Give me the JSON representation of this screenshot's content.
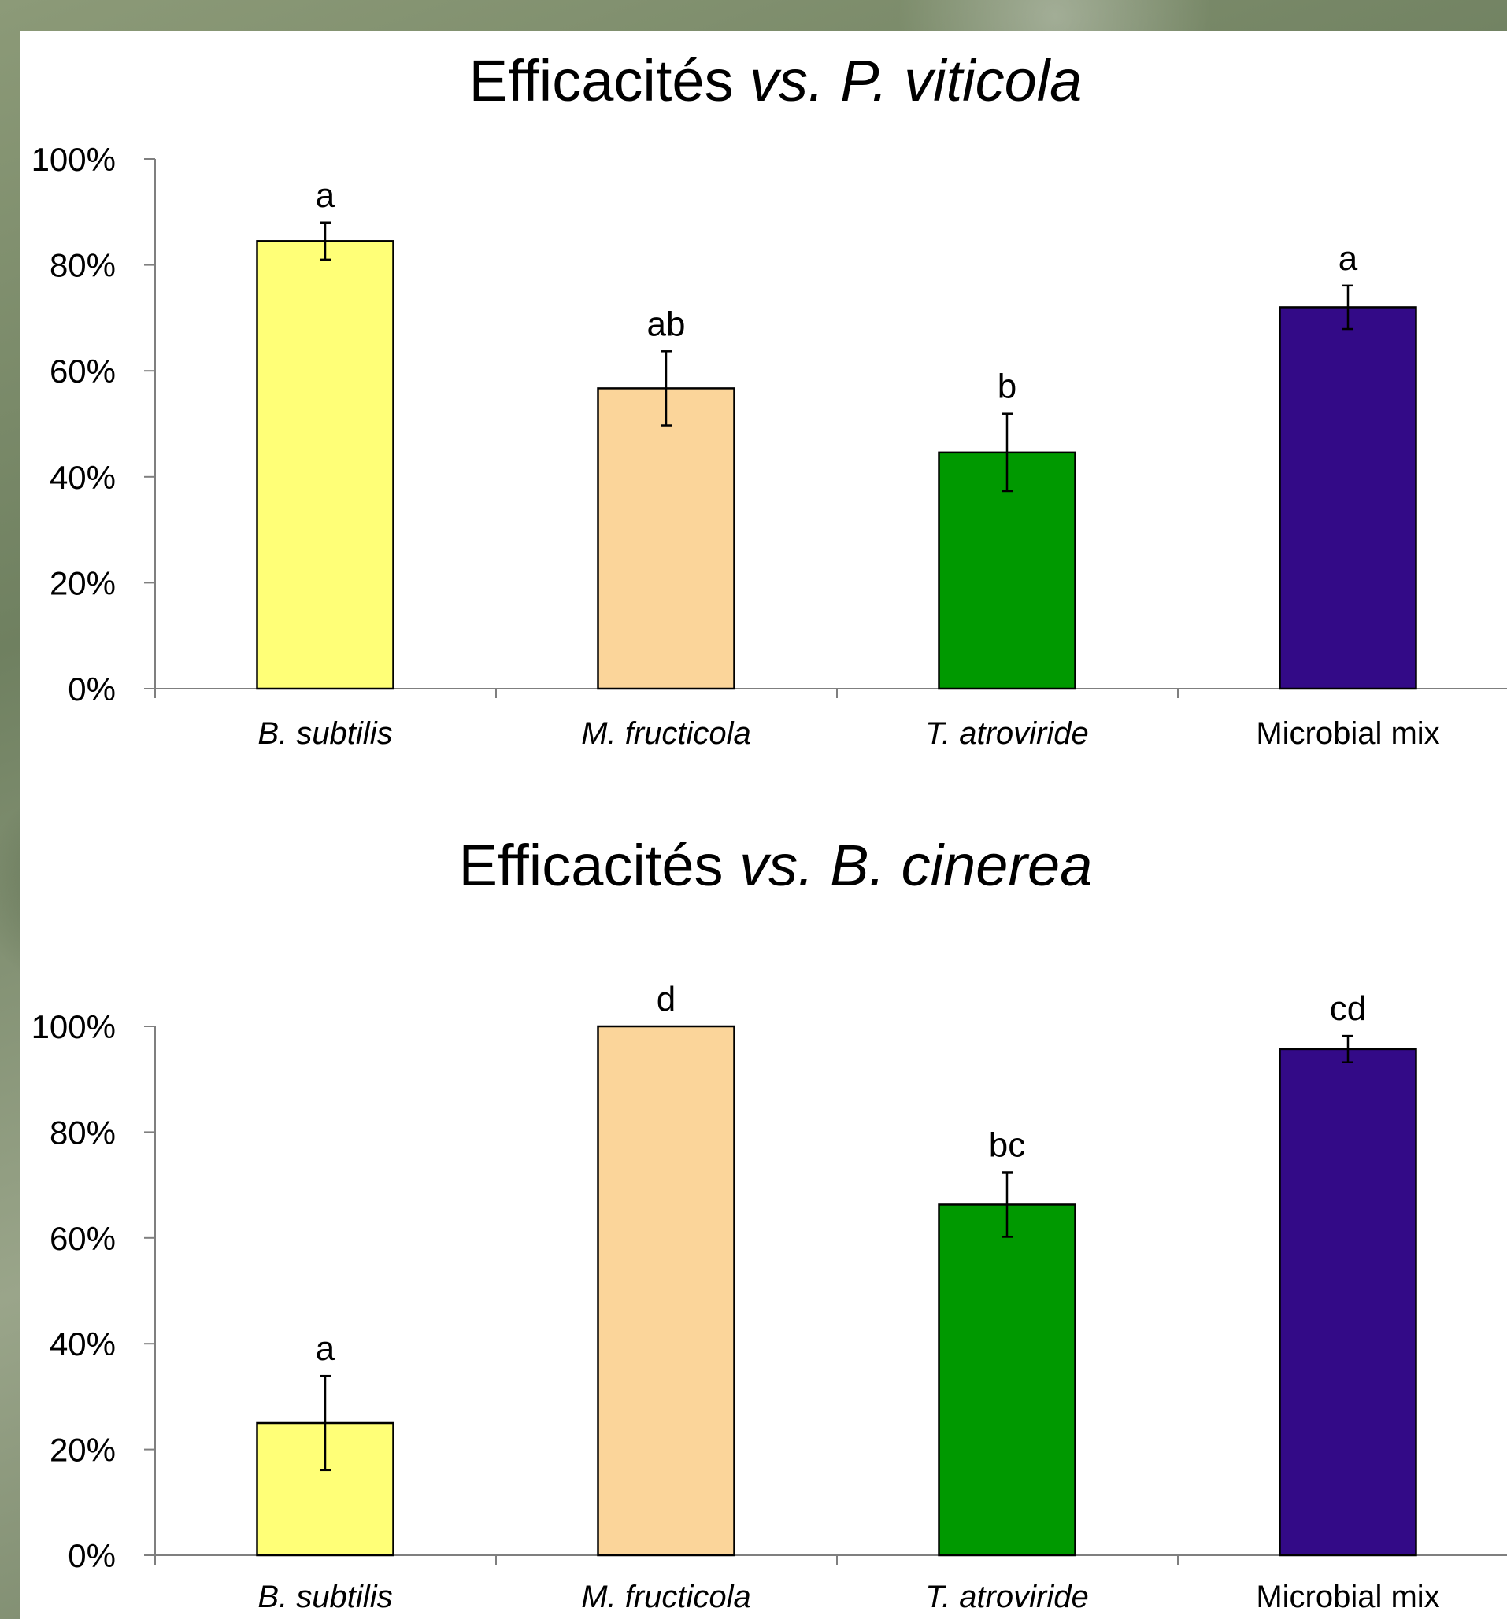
{
  "chart_data": [
    {
      "type": "bar",
      "title_parts": [
        {
          "text": "Efficacités ",
          "italic": false
        },
        {
          "text": "vs. P. viticola",
          "italic": true
        }
      ],
      "categories": [
        "B. subtilis",
        "M. fructicola",
        "T. atroviride",
        "Microbial mix"
      ],
      "category_italic": [
        true,
        true,
        true,
        false
      ],
      "values": [
        84.5,
        56.7,
        44.6,
        72.0
      ],
      "errors": [
        3.5,
        7.0,
        7.3,
        4.1
      ],
      "significance": [
        "a",
        "ab",
        "b",
        "a"
      ],
      "colors": [
        "#ffff77",
        "#fbd59a",
        "#009900",
        "#330a87"
      ],
      "ylim": [
        0,
        100
      ],
      "yticks": [
        "0%",
        "20%",
        "40%",
        "60%",
        "80%",
        "100%"
      ]
    },
    {
      "type": "bar",
      "title_parts": [
        {
          "text": "Efficacités ",
          "italic": false
        },
        {
          "text": "vs. B. cinerea",
          "italic": true
        }
      ],
      "categories": [
        "B. subtilis",
        "M. fructicola",
        "T. atroviride",
        "Microbial mix"
      ],
      "category_italic": [
        true,
        true,
        true,
        false
      ],
      "values": [
        25.0,
        100.0,
        66.3,
        95.7
      ],
      "errors": [
        8.9,
        0,
        6.1,
        2.5
      ],
      "significance": [
        "a",
        "d",
        "bc",
        "cd"
      ],
      "colors": [
        "#ffff77",
        "#fbd59a",
        "#009900",
        "#330a87"
      ],
      "ylim": [
        0,
        100
      ],
      "yticks": [
        "0%",
        "20%",
        "40%",
        "60%",
        "80%",
        "100%"
      ]
    }
  ]
}
